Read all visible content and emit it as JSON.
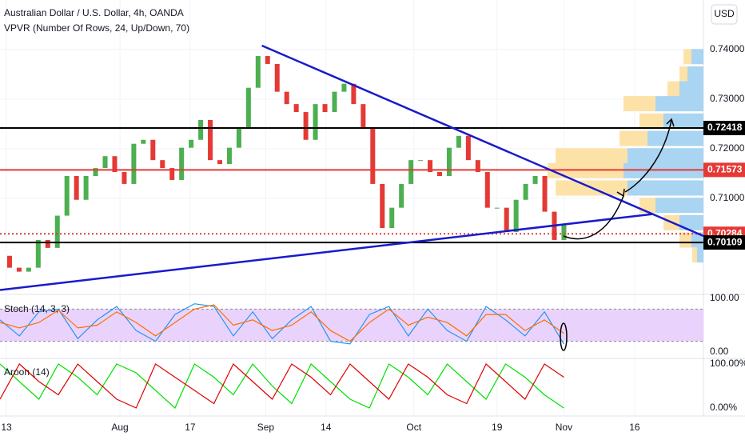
{
  "chart_data": {
    "type": "candlestick",
    "title": "Australian Dollar / U.S. Dollar, 4h, OANDA",
    "indicator": "VPVR (Number Of Rows, 24, Up/Down, 70)",
    "currency": "USD",
    "up_color": "#4caf50",
    "down_color": "#e53935",
    "closes": [
      0.6984,
      0.696,
      0.6952,
      0.696,
      0.7016,
      0.7,
      0.7065,
      0.7145,
      0.7097,
      0.7145,
      0.7161,
      0.7185,
      0.7153,
      0.7129,
      0.721,
      0.7218,
      0.7177,
      0.7161,
      0.7137,
      0.7202,
      0.7218,
      0.7258,
      0.7177,
      0.7169,
      0.7202,
      0.7242,
      0.7323,
      0.7387,
      0.7371,
      0.7315,
      0.729,
      0.7274,
      0.7218,
      0.729,
      0.7274,
      0.7315,
      0.7331,
      0.729,
      0.7242,
      0.7129,
      0.704,
      0.7081,
      0.7129,
      0.7177,
      0.7177,
      0.7153,
      0.7145,
      0.7202,
      0.7226,
      0.7177,
      0.7153,
      0.7081,
      0.7081,
      0.7032,
      0.7097,
      0.7129,
      0.7145,
      0.7073,
      0.7016,
      0.7048
    ],
    "xlim": [
      0,
      73.6
    ],
    "xticks": [
      {
        "value": 0.67,
        "label": "13"
      },
      {
        "value": 12.55,
        "label": "Aug"
      },
      {
        "value": 19.9,
        "label": "17"
      },
      {
        "value": 27.8,
        "label": "Sep"
      },
      {
        "value": 34.1,
        "label": "14"
      },
      {
        "value": 43.3,
        "label": "Oct"
      },
      {
        "value": 52,
        "label": "19"
      },
      {
        "value": 59,
        "label": "Nov"
      },
      {
        "value": 66.4,
        "label": "16"
      }
    ],
    "ylim": [
      0.6911,
      0.75
    ],
    "yticks": [
      {
        "value": 0.74,
        "label": "0.74000"
      },
      {
        "value": 0.73,
        "label": "0.73000"
      },
      {
        "value": 0.72,
        "label": "0.72000"
      },
      {
        "value": 0.71,
        "label": "0.71000"
      }
    ],
    "levels": [
      {
        "value": 0.72418,
        "color": "#000000",
        "dashed": false
      },
      {
        "value": 0.71573,
        "color": "#e53935",
        "dashed": false
      },
      {
        "value": 0.70284,
        "color": "#e53935",
        "dashed": true
      },
      {
        "value": 0.70109,
        "color": "#000000",
        "dashed": false
      }
    ],
    "trendlines": [
      {
        "x": [
          27.4,
          73.6
        ],
        "y": [
          0.7408,
          0.7024
        ],
        "color": "#1a1acc"
      },
      {
        "x": [
          0,
          68.2
        ],
        "y": [
          0.6915,
          0.7068
        ],
        "color": "#1a1acc"
      }
    ],
    "volume_profile": {
      "up_color": "#a9d4f2",
      "down_color": "#fde2a8",
      "prices": [
        0.7385,
        0.735,
        0.732,
        0.729,
        0.7255,
        0.722,
        0.7185,
        0.7155,
        0.712,
        0.7085,
        0.705,
        0.7015,
        0.6985
      ],
      "up": [
        15,
        20,
        30,
        60,
        50,
        70,
        95,
        100,
        95,
        60,
        30,
        15,
        8
      ],
      "down": [
        10,
        10,
        15,
        40,
        30,
        35,
        90,
        95,
        90,
        20,
        20,
        15,
        6
      ]
    },
    "stoch": {
      "title": "Stoch (14, 3, 3)",
      "ylim": [
        0,
        100
      ],
      "yticks": [
        {
          "value": 100,
          "label": "100.00"
        },
        {
          "value": 0,
          "label": "0.00"
        }
      ],
      "bands": [
        80,
        20
      ],
      "band_color": "#e4c8fb",
      "series": [
        {
          "color": "#2196f3",
          "values": [
            60,
            30,
            75,
            80,
            25,
            60,
            85,
            40,
            20,
            70,
            90,
            85,
            30,
            75,
            25,
            60,
            85,
            20,
            15,
            70,
            85,
            30,
            80,
            40,
            20,
            85,
            60,
            30,
            75,
            15
          ]
        },
        {
          "color": "#ff6d00",
          "values": [
            55,
            45,
            55,
            78,
            45,
            50,
            75,
            55,
            30,
            55,
            80,
            88,
            50,
            60,
            40,
            50,
            75,
            40,
            20,
            55,
            80,
            50,
            65,
            55,
            30,
            70,
            70,
            40,
            60,
            35
          ]
        }
      ]
    },
    "aroon": {
      "title": "Aroon (14)",
      "ylim": [
        0,
        100
      ],
      "yticks": [
        {
          "value": 100,
          "label": "100.00%"
        },
        {
          "value": 0,
          "label": "0.00%"
        }
      ],
      "series": [
        {
          "color": "#00e000",
          "values": [
            100,
            60,
            20,
            100,
            70,
            30,
            100,
            80,
            40,
            0,
            100,
            70,
            30,
            100,
            50,
            10,
            100,
            60,
            20,
            0,
            100,
            70,
            30,
            100,
            60,
            20,
            100,
            70,
            30,
            0
          ]
        },
        {
          "color": "#e00000",
          "values": [
            20,
            100,
            60,
            30,
            100,
            60,
            20,
            0,
            100,
            70,
            40,
            10,
            100,
            60,
            20,
            100,
            70,
            30,
            100,
            60,
            20,
            100,
            70,
            30,
            10,
            100,
            60,
            20,
            100,
            70
          ]
        }
      ]
    }
  }
}
